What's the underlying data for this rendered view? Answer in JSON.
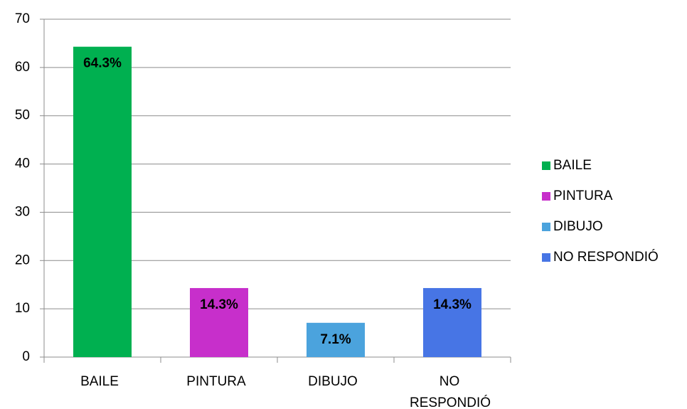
{
  "chart_data": {
    "type": "bar",
    "categories": [
      "BAILE",
      "PINTURA",
      "DIBUJO",
      "NO RESPONDIÓ"
    ],
    "values": [
      64.3,
      14.3,
      7.1,
      14.3
    ],
    "value_labels": [
      "64.3%",
      "14.3%",
      "7.1%",
      "14.3%"
    ],
    "colors": [
      "#00b050",
      "#c72fcb",
      "#4ba3dd",
      "#4775e5"
    ],
    "ylim": [
      0,
      70
    ],
    "yticks": [
      0,
      10,
      20,
      30,
      40,
      50,
      60,
      70
    ],
    "grid": true,
    "legend": "right"
  }
}
